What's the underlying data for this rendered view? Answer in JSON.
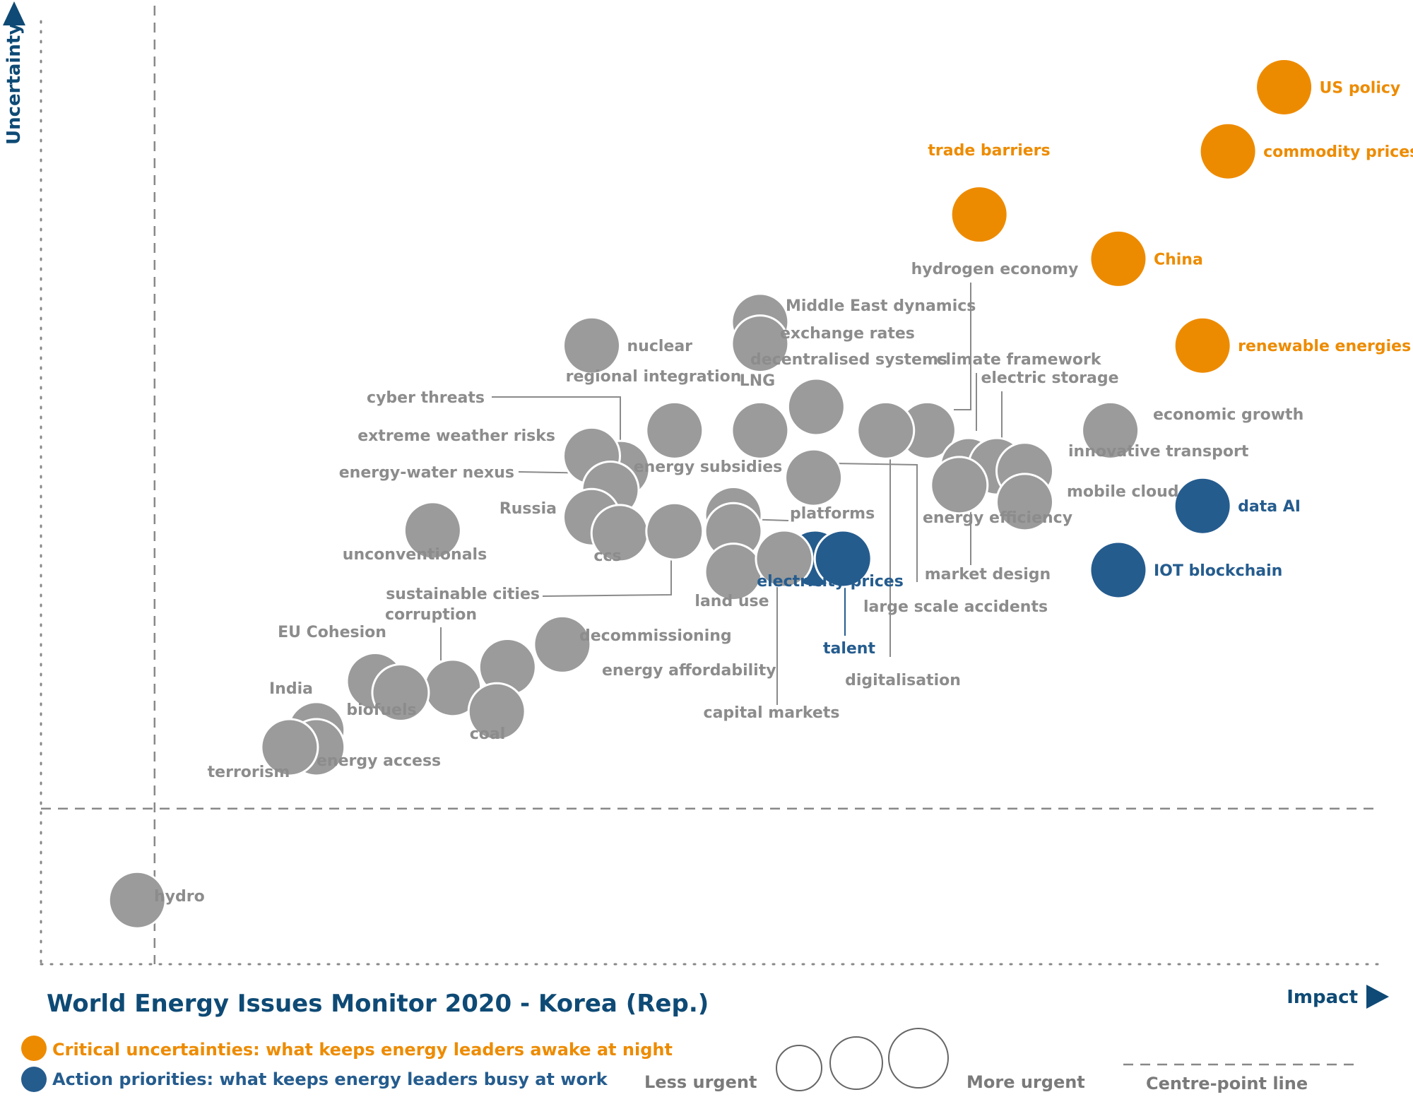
{
  "chart_data": {
    "type": "scatter",
    "title": "World Energy Issues Monitor 2020 - Korea (Rep.)",
    "xlabel": "Impact",
    "ylabel": "Uncertainty",
    "xlim": [
      0,
      100
    ],
    "ylim": [
      0,
      100
    ],
    "grid": false,
    "centre_point": {
      "x": 8.5,
      "y": 16.5
    },
    "colors": {
      "critical": "#ed8b00",
      "action": "#255c8e",
      "other": "#9b9b9b",
      "leader_line": "#8a8a8a",
      "axis_text": "#0e4a75",
      "urgency_text": "#7a7a7a"
    },
    "points": [
      {
        "name": "US policy",
        "x": 93.0,
        "y": 93.0,
        "category": "critical",
        "label_pos": "right"
      },
      {
        "name": "commodity prices",
        "x": 88.8,
        "y": 86.2,
        "category": "critical",
        "label_pos": "right"
      },
      {
        "name": "trade barriers",
        "x": 70.2,
        "y": 79.5,
        "category": "critical",
        "label_pos": "top"
      },
      {
        "name": "China",
        "x": 80.6,
        "y": 74.8,
        "category": "critical",
        "label_pos": "right"
      },
      {
        "name": "renewable energies",
        "x": 86.9,
        "y": 65.6,
        "category": "critical",
        "label_pos": "right"
      },
      {
        "name": "data AI",
        "x": 86.9,
        "y": 48.6,
        "category": "action",
        "label_pos": "right"
      },
      {
        "name": "IOT blockchain",
        "x": 80.6,
        "y": 41.8,
        "category": "action",
        "label_pos": "right"
      },
      {
        "name": "electricity prices",
        "x": 57.9,
        "y": 43.0,
        "category": "action",
        "label_pos": "bottom"
      },
      {
        "name": "talent",
        "x": 60.0,
        "y": 43.0,
        "category": "action",
        "label_pos": "leader"
      },
      {
        "name": "hydrogen economy",
        "x": 66.3,
        "y": 56.6,
        "category": "other",
        "label_pos": "leader"
      },
      {
        "name": "Middle East dynamics",
        "x": 53.8,
        "y": 68.1,
        "category": "other",
        "label_pos": "right"
      },
      {
        "name": "exchange rates",
        "x": 53.8,
        "y": 65.8,
        "category": "other",
        "label_pos": "right"
      },
      {
        "name": "nuclear",
        "x": 41.2,
        "y": 65.6,
        "category": "other",
        "label_pos": "right"
      },
      {
        "name": "decentralised systems",
        "x": 58.0,
        "y": 59.1,
        "category": "other",
        "label_pos": "top"
      },
      {
        "name": "LNG",
        "x": 53.8,
        "y": 56.6,
        "category": "other",
        "label_pos": "top"
      },
      {
        "name": "regional integration",
        "x": 47.4,
        "y": 56.6,
        "category": "other",
        "label_pos": "top"
      },
      {
        "name": "cyber threats",
        "x": 43.4,
        "y": 52.5,
        "category": "other",
        "label_pos": "leader"
      },
      {
        "name": "extreme weather risks",
        "x": 41.2,
        "y": 53.9,
        "category": "other",
        "label_pos": "left"
      },
      {
        "name": "energy-water nexus",
        "x": 42.6,
        "y": 50.3,
        "category": "other",
        "label_pos": "leader"
      },
      {
        "name": "Russia",
        "x": 41.2,
        "y": 47.4,
        "category": "other",
        "label_pos": "left"
      },
      {
        "name": "ccs",
        "x": 43.3,
        "y": 45.7,
        "category": "other",
        "label_pos": "bottom"
      },
      {
        "name": "unconventionals",
        "x": 29.3,
        "y": 46.0,
        "category": "other",
        "label_pos": "bottom"
      },
      {
        "name": "energy subsidies",
        "x": 51.8,
        "y": 47.6,
        "category": "other",
        "label_pos": "top"
      },
      {
        "name": "platforms",
        "x": 51.8,
        "y": 45.9,
        "category": "other",
        "label_pos": "leader"
      },
      {
        "name": "land use",
        "x": 51.8,
        "y": 41.6,
        "category": "other",
        "label_pos": "bottom"
      },
      {
        "name": "sustainable cities",
        "x": 47.4,
        "y": 45.9,
        "category": "other",
        "label_pos": "leader"
      },
      {
        "name": "capital markets",
        "x": 55.6,
        "y": 43.0,
        "category": "other",
        "label_pos": "leader"
      },
      {
        "name": "large scale accidents",
        "x": 57.8,
        "y": 51.6,
        "category": "other",
        "label_pos": "leader"
      },
      {
        "name": "digitalisation",
        "x": 63.2,
        "y": 56.6,
        "category": "other",
        "label_pos": "leader"
      },
      {
        "name": "climate framework",
        "x": 69.4,
        "y": 52.8,
        "category": "other",
        "label_pos": "leader"
      },
      {
        "name": "electric storage",
        "x": 71.5,
        "y": 52.8,
        "category": "other",
        "label_pos": "leader"
      },
      {
        "name": "innovative transport",
        "x": 73.6,
        "y": 52.3,
        "category": "other",
        "label_pos": "right"
      },
      {
        "name": "mobile cloud",
        "x": 73.6,
        "y": 49.0,
        "category": "other",
        "label_pos": "right"
      },
      {
        "name": "energy efficiency",
        "x": 68.7,
        "y": 50.8,
        "category": "other",
        "label_pos": "bottom"
      },
      {
        "name": "market design",
        "x": 68.7,
        "y": 50.8,
        "category": "other",
        "label_pos": "leader"
      },
      {
        "name": "economic growth",
        "x": 80.0,
        "y": 56.6,
        "category": "other",
        "label_pos": "right"
      },
      {
        "name": "decommissioning",
        "x": 39.0,
        "y": 33.9,
        "category": "other",
        "label_pos": "right"
      },
      {
        "name": "energy affordability",
        "x": 34.9,
        "y": 31.5,
        "category": "other",
        "label_pos": "bottom"
      },
      {
        "name": "corruption",
        "x": 30.8,
        "y": 29.3,
        "category": "other",
        "label_pos": "leader"
      },
      {
        "name": "coal",
        "x": 34.1,
        "y": 26.8,
        "category": "other",
        "label_pos": "bottom"
      },
      {
        "name": "EU Cohesion",
        "x": 25.0,
        "y": 30.0,
        "category": "other",
        "label_pos": "top"
      },
      {
        "name": "biofuels",
        "x": 26.9,
        "y": 28.8,
        "category": "other",
        "label_pos": "bottom"
      },
      {
        "name": "India",
        "x": 20.6,
        "y": 24.8,
        "category": "other",
        "label_pos": "top"
      },
      {
        "name": "energy access",
        "x": 20.6,
        "y": 23.0,
        "category": "other",
        "label_pos": "right"
      },
      {
        "name": "terrorism",
        "x": 18.6,
        "y": 23.0,
        "category": "other",
        "label_pos": "bottom"
      },
      {
        "name": "hydro",
        "x": 7.2,
        "y": 6.8,
        "category": "other",
        "label_pos": "right"
      }
    ]
  },
  "legend": {
    "critical": "Critical uncertainties: what keeps energy leaders awake at night",
    "action": "Action priorities: what keeps energy leaders busy at work",
    "less_urgent": "Less urgent",
    "more_urgent": "More urgent",
    "centre_point": "Centre-point  line"
  }
}
